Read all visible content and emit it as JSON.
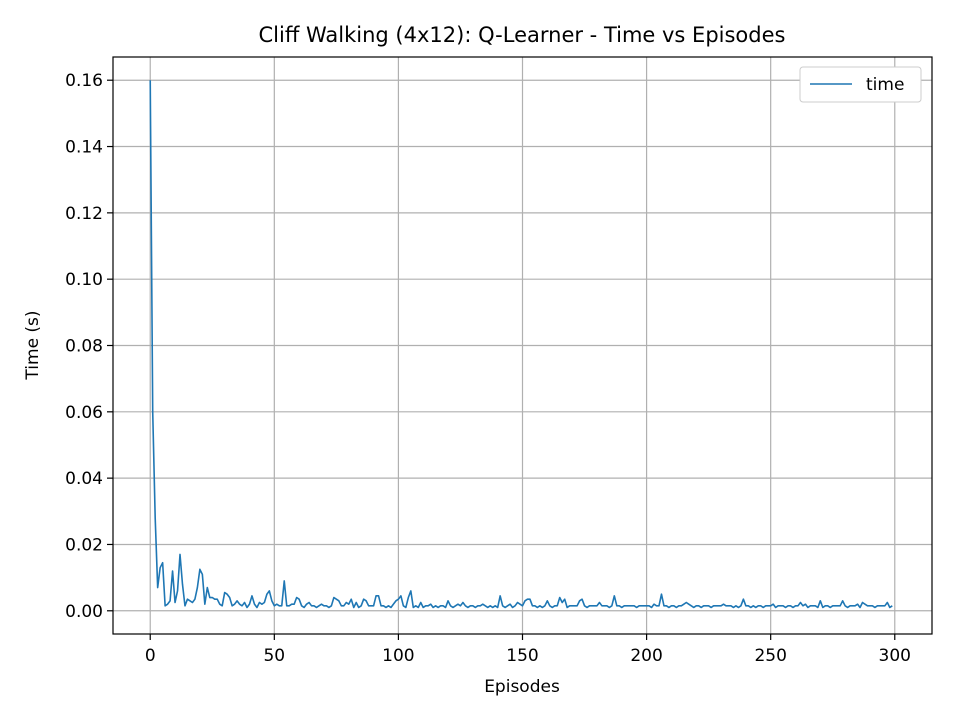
{
  "chart_data": {
    "type": "line",
    "title": "Cliff Walking (4x12): Q-Learner - Time vs Episodes",
    "xlabel": "Episodes",
    "ylabel": "Time (s)",
    "xlim": [
      -15,
      315
    ],
    "ylim": [
      -0.007,
      0.167
    ],
    "xticks": [
      0,
      50,
      100,
      150,
      200,
      250,
      300
    ],
    "xtick_labels": [
      "0",
      "50",
      "100",
      "150",
      "200",
      "250",
      "300"
    ],
    "yticks": [
      0.0,
      0.02,
      0.04,
      0.06,
      0.08,
      0.1,
      0.12,
      0.14,
      0.16
    ],
    "ytick_labels": [
      "0.00",
      "0.02",
      "0.04",
      "0.06",
      "0.08",
      "0.10",
      "0.12",
      "0.14",
      "0.16"
    ],
    "grid": true,
    "legend": {
      "position": "top-right",
      "entries": [
        "time"
      ]
    },
    "colors": {
      "series": "#1f77b4",
      "grid": "#b0b0b0",
      "axes": "#000000"
    },
    "series": [
      {
        "name": "time",
        "x_start": 0,
        "x_step": 1,
        "values": [
          0.16,
          0.06,
          0.028,
          0.007,
          0.013,
          0.0145,
          0.0015,
          0.002,
          0.003,
          0.012,
          0.0025,
          0.006,
          0.017,
          0.008,
          0.0015,
          0.0035,
          0.003,
          0.0025,
          0.0035,
          0.007,
          0.0125,
          0.011,
          0.002,
          0.007,
          0.004,
          0.004,
          0.0035,
          0.0035,
          0.002,
          0.0015,
          0.0055,
          0.005,
          0.004,
          0.0015,
          0.002,
          0.003,
          0.002,
          0.0015,
          0.0025,
          0.001,
          0.002,
          0.0045,
          0.002,
          0.001,
          0.0025,
          0.002,
          0.0025,
          0.005,
          0.006,
          0.003,
          0.0015,
          0.002,
          0.0015,
          0.0015,
          0.009,
          0.0015,
          0.0015,
          0.002,
          0.002,
          0.004,
          0.0035,
          0.0015,
          0.001,
          0.002,
          0.0025,
          0.0015,
          0.0015,
          0.001,
          0.0015,
          0.002,
          0.0015,
          0.0015,
          0.001,
          0.0015,
          0.004,
          0.0035,
          0.003,
          0.0015,
          0.0015,
          0.0025,
          0.002,
          0.0035,
          0.001,
          0.0025,
          0.001,
          0.0015,
          0.0035,
          0.003,
          0.0015,
          0.0015,
          0.0015,
          0.0045,
          0.0045,
          0.0015,
          0.0015,
          0.001,
          0.0015,
          0.001,
          0.002,
          0.003,
          0.0035,
          0.0045,
          0.0015,
          0.001,
          0.004,
          0.006,
          0.001,
          0.0015,
          0.001,
          0.0025,
          0.001,
          0.0015,
          0.0015,
          0.002,
          0.001,
          0.0015,
          0.001,
          0.0015,
          0.0015,
          0.001,
          0.003,
          0.0015,
          0.001,
          0.0015,
          0.002,
          0.0015,
          0.0025,
          0.0015,
          0.001,
          0.0015,
          0.0015,
          0.001,
          0.0015,
          0.0015,
          0.002,
          0.0015,
          0.001,
          0.0015,
          0.001,
          0.0015,
          0.001,
          0.0045,
          0.0015,
          0.001,
          0.0015,
          0.002,
          0.001,
          0.0015,
          0.0025,
          0.002,
          0.0015,
          0.003,
          0.0035,
          0.0035,
          0.0015,
          0.0015,
          0.001,
          0.0015,
          0.001,
          0.0015,
          0.003,
          0.0015,
          0.001,
          0.0015,
          0.0015,
          0.004,
          0.0025,
          0.0035,
          0.001,
          0.0015,
          0.0015,
          0.0015,
          0.0015,
          0.003,
          0.0035,
          0.0015,
          0.001,
          0.0015,
          0.0015,
          0.0015,
          0.0015,
          0.0025,
          0.0015,
          0.0015,
          0.0015,
          0.001,
          0.0015,
          0.0045,
          0.0015,
          0.0015,
          0.001,
          0.0015,
          0.0015,
          0.0015,
          0.0015,
          0.0015,
          0.001,
          0.0015,
          0.0015,
          0.0015,
          0.0015,
          0.0015,
          0.001,
          0.002,
          0.0015,
          0.0015,
          0.005,
          0.0015,
          0.0015,
          0.001,
          0.0015,
          0.0015,
          0.001,
          0.0015,
          0.0015,
          0.002,
          0.0025,
          0.002,
          0.0015,
          0.001,
          0.0015,
          0.0015,
          0.001,
          0.0015,
          0.0015,
          0.0015,
          0.001,
          0.0015,
          0.0015,
          0.0015,
          0.0015,
          0.002,
          0.0015,
          0.0015,
          0.0015,
          0.001,
          0.0015,
          0.001,
          0.0015,
          0.0035,
          0.0015,
          0.0015,
          0.001,
          0.0015,
          0.001,
          0.0015,
          0.0015,
          0.001,
          0.0015,
          0.0015,
          0.0015,
          0.002,
          0.001,
          0.0015,
          0.0015,
          0.0015,
          0.001,
          0.0015,
          0.0015,
          0.001,
          0.0015,
          0.0015,
          0.0025,
          0.0015,
          0.002,
          0.001,
          0.0015,
          0.0015,
          0.0015,
          0.001,
          0.003,
          0.001,
          0.0015,
          0.0015,
          0.001,
          0.0015,
          0.0015,
          0.0015,
          0.0015,
          0.003,
          0.0015,
          0.001,
          0.0015,
          0.0015,
          0.0015,
          0.002,
          0.001,
          0.0025,
          0.002,
          0.0015,
          0.0015,
          0.0015,
          0.001,
          0.0015,
          0.0015,
          0.0015,
          0.0015,
          0.0025,
          0.001,
          0.0015
        ]
      }
    ]
  }
}
